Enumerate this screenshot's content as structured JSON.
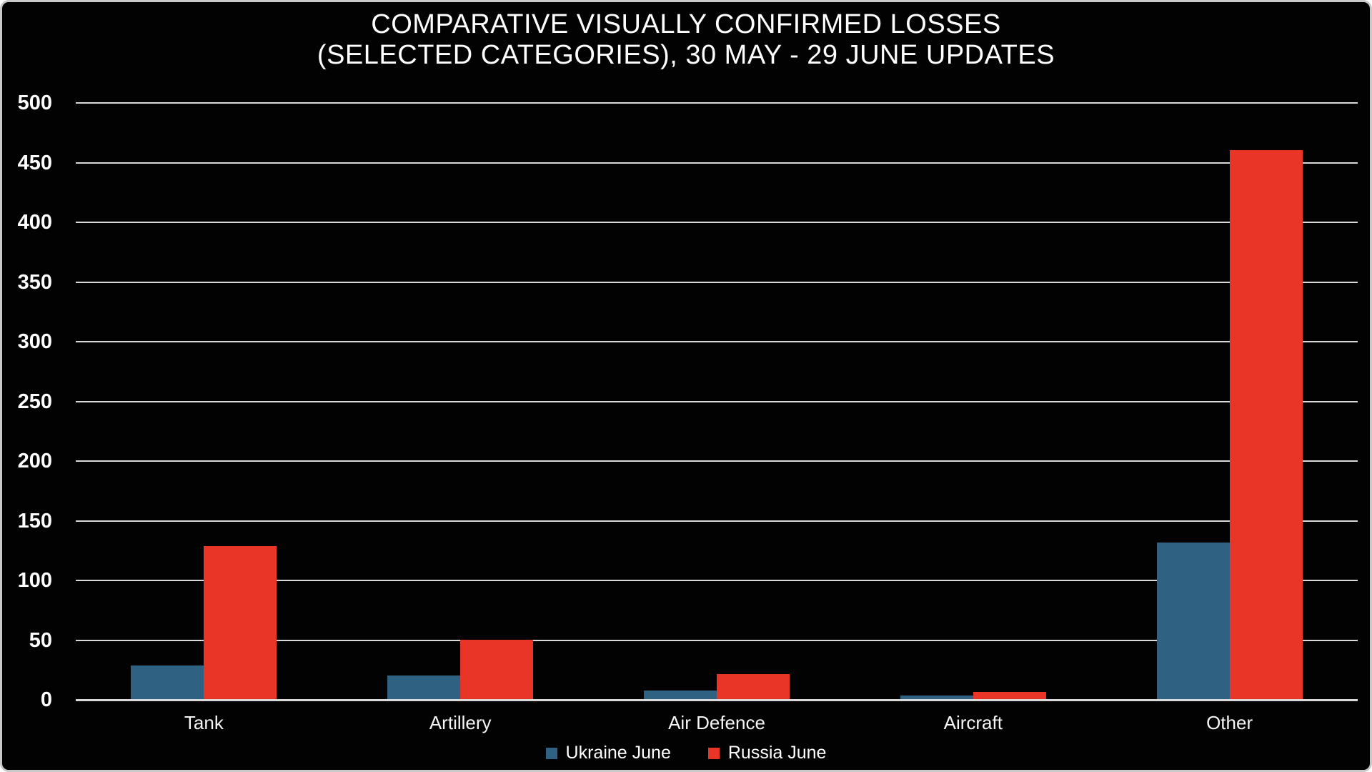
{
  "chart": {
    "title_line1": "COMPARATIVE VISUALLY CONFIRMED LOSSES",
    "title_line2": "(SELECTED CATEGORIES), 30 MAY - 29 JUNE UPDATES"
  },
  "chart_data": {
    "type": "bar",
    "title": "COMPARATIVE VISUALLY CONFIRMED LOSSES (SELECTED CATEGORIES), 30 MAY - 29 JUNE UPDATES",
    "categories": [
      "Tank",
      "Artillery",
      "Air Defence",
      "Aircraft",
      "Other"
    ],
    "series": [
      {
        "name": "Ukraine June",
        "color": "#2f6282",
        "values": [
          28,
          20,
          7,
          3,
          131
        ]
      },
      {
        "name": "Russia June",
        "color": "#e93428",
        "values": [
          128,
          50,
          21,
          6,
          460
        ]
      }
    ],
    "xlabel": "",
    "ylabel": "",
    "ylim": [
      0,
      500
    ],
    "ytick_step": 50,
    "grid": true,
    "gridline_color": "#d9d9d9",
    "background": "#020202",
    "text_color": "#ffffff",
    "legend_position": "bottom"
  }
}
